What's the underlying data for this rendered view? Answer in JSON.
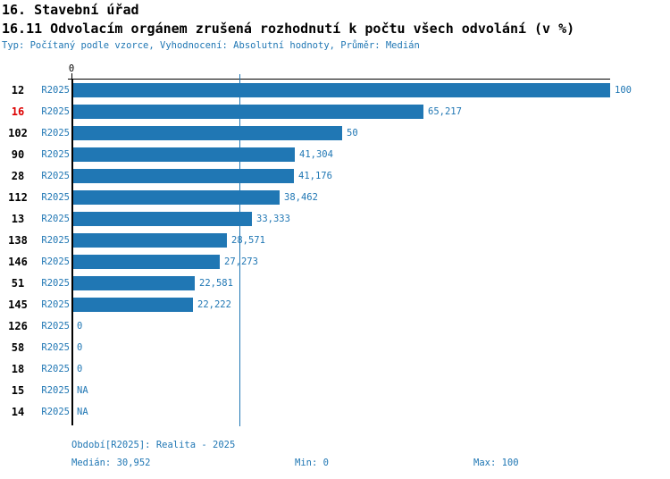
{
  "header": {
    "title": "16. Stavební úřad",
    "subtitle": "16.11 Odvolacím orgánem zrušená rozhodnutí k počtu všech odvolání (v %)",
    "meta": "Typ: Počítaný podle vzorce, Vyhodnocení: Absolutní hodnoty, Průměr: Medián"
  },
  "axis": {
    "zero_tick_label": "0"
  },
  "chart_data": {
    "type": "bar",
    "orientation": "horizontal",
    "title": "16.11 Odvolacím orgánem zrušená rozhodnutí k počtu všech odvolání (v %)",
    "xlabel": "",
    "ylabel": "",
    "xlim": [
      0,
      100
    ],
    "grid": false,
    "series_label": "R2025",
    "median_value": 30.952,
    "categories": [
      "12",
      "16",
      "102",
      "90",
      "28",
      "112",
      "13",
      "138",
      "146",
      "51",
      "145",
      "126",
      "58",
      "18",
      "15",
      "14"
    ],
    "rows": [
      {
        "id": "12",
        "value": 100,
        "label": "100",
        "highlight": false
      },
      {
        "id": "16",
        "value": 65.217,
        "label": "65,217",
        "highlight": true
      },
      {
        "id": "102",
        "value": 50,
        "label": "50",
        "highlight": false
      },
      {
        "id": "90",
        "value": 41.304,
        "label": "41,304",
        "highlight": false
      },
      {
        "id": "28",
        "value": 41.176,
        "label": "41,176",
        "highlight": false
      },
      {
        "id": "112",
        "value": 38.462,
        "label": "38,462",
        "highlight": false
      },
      {
        "id": "13",
        "value": 33.333,
        "label": "33,333",
        "highlight": false
      },
      {
        "id": "138",
        "value": 28.571,
        "label": "28,571",
        "highlight": false
      },
      {
        "id": "146",
        "value": 27.273,
        "label": "27,273",
        "highlight": false
      },
      {
        "id": "51",
        "value": 22.581,
        "label": "22,581",
        "highlight": false
      },
      {
        "id": "145",
        "value": 22.222,
        "label": "22,222",
        "highlight": false
      },
      {
        "id": "126",
        "value": 0,
        "label": "0",
        "highlight": false
      },
      {
        "id": "58",
        "value": 0,
        "label": "0",
        "highlight": false
      },
      {
        "id": "18",
        "value": 0,
        "label": "0",
        "highlight": false
      },
      {
        "id": "15",
        "value": null,
        "label": "NA",
        "highlight": false
      },
      {
        "id": "14",
        "value": null,
        "label": "NA",
        "highlight": false
      }
    ]
  },
  "footer": {
    "period": "Období[R2025]: Realita - 2025",
    "median": "Medián: 30,952",
    "min": "Min: 0",
    "max": "Max: 100"
  },
  "colors": {
    "bar_blue": "#2077b4",
    "text_blue": "#2077b4",
    "highlight_red": "#dd0000",
    "axis_black": "#000000"
  }
}
